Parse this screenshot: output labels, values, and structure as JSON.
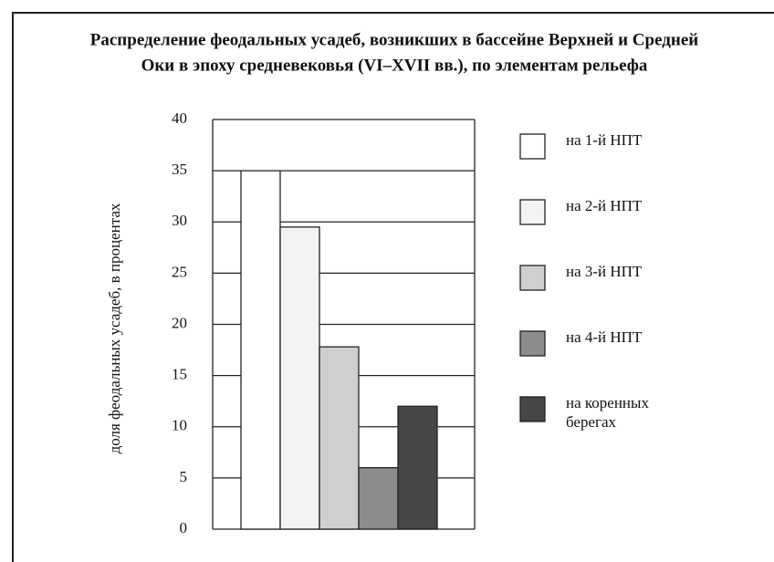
{
  "chart_data": {
    "type": "bar",
    "title": [
      "Распределение феодальных усадеб, возникших в бассейне Верхней и Средней",
      "Оки в эпоху средневековья (VI–XVII вв.), по элементам рельефа"
    ],
    "y_label": "доля феодальных усадеб, в процентах",
    "series": [
      {
        "name": "на 1-й НПТ",
        "color": "#ffffff",
        "values": [
          35
        ]
      },
      {
        "name": "на 2-й НПТ",
        "color": "#f3f3f3",
        "values": [
          29.5
        ]
      },
      {
        "name": "на 3-й НПТ",
        "color": "#cfcfcf",
        "values": [
          17.8
        ]
      },
      {
        "name": "на 4-й НПТ",
        "color": "#8c8c8c",
        "values": [
          6
        ]
      },
      {
        "name": "на коренных берегах",
        "color": "#474747",
        "values": [
          12
        ]
      }
    ],
    "ylim": [
      0,
      40
    ],
    "yticks": [
      0,
      5,
      10,
      15,
      20,
      25,
      30,
      35,
      40
    ],
    "grid": true,
    "legend": "right"
  }
}
